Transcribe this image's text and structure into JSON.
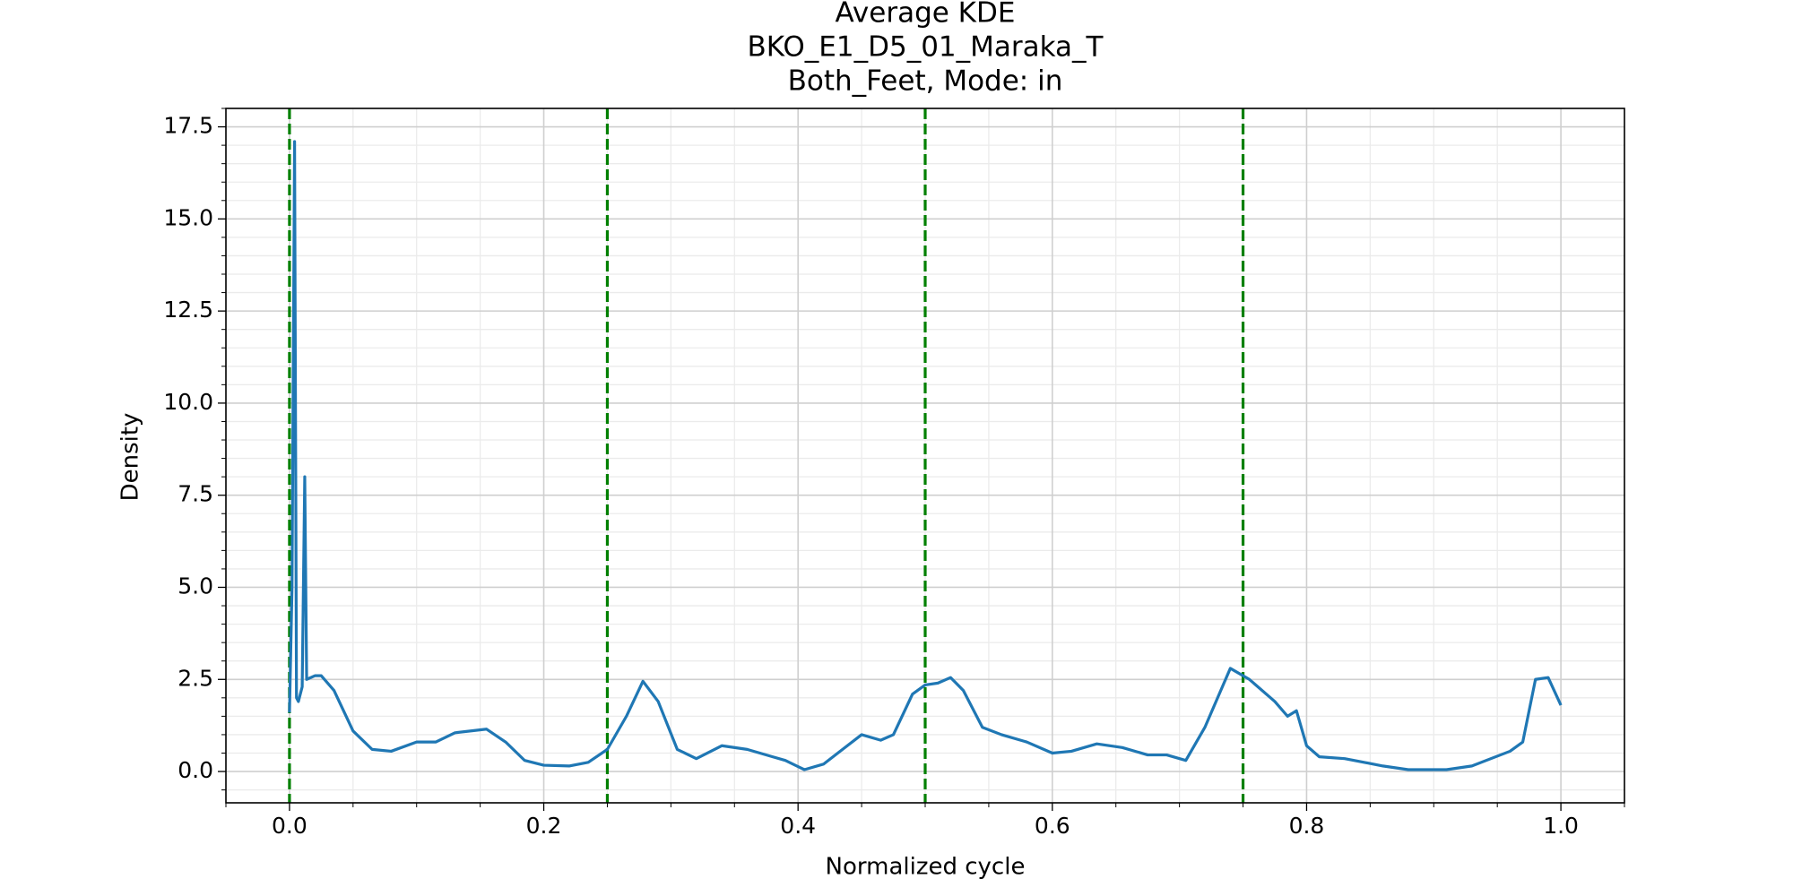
{
  "chart_data": {
    "type": "line",
    "title": [
      "Average KDE",
      "BKO_E1_D5_01_Maraka_T",
      "Both_Feet, Mode: in"
    ],
    "xlabel": "Normalized cycle",
    "ylabel": "Density",
    "xlim": [
      -0.05,
      1.05
    ],
    "ylim": [
      -0.85,
      18.0
    ],
    "xticks": [
      {
        "value": 0,
        "label": "0.0"
      },
      0.2,
      0.4,
      0.6,
      0.8,
      {
        "value": 1,
        "label": "1.0"
      }
    ],
    "yticks": [
      {
        "value": 0,
        "label": "0.0"
      },
      2.5,
      {
        "value": 5,
        "label": "5.0"
      },
      7.5,
      {
        "value": 10,
        "label": "10.0"
      },
      12.5,
      {
        "value": 15,
        "label": "15.0"
      },
      17.5
    ],
    "x_minor_step": 0.05,
    "y_minor_step": 0.5,
    "grid": true,
    "vlines": [
      0,
      0.25,
      0.5,
      0.75
    ],
    "vline_color": "#008000",
    "series": [
      {
        "color": "#1f77b4",
        "x": [
          0.0,
          0.002,
          0.004,
          0.0055,
          0.007,
          0.01,
          0.012,
          0.0135,
          0.02,
          0.025,
          0.035,
          0.05,
          0.065,
          0.08,
          0.1,
          0.115,
          0.13,
          0.155,
          0.17,
          0.185,
          0.2,
          0.22,
          0.235,
          0.25,
          0.265,
          0.278,
          0.29,
          0.305,
          0.32,
          0.34,
          0.36,
          0.38,
          0.39,
          0.405,
          0.42,
          0.435,
          0.45,
          0.465,
          0.475,
          0.49,
          0.5,
          0.51,
          0.52,
          0.53,
          0.545,
          0.56,
          0.58,
          0.6,
          0.615,
          0.635,
          0.655,
          0.675,
          0.69,
          0.705,
          0.72,
          0.74,
          0.755,
          0.775,
          0.785,
          0.792,
          0.8,
          0.81,
          0.83,
          0.86,
          0.88,
          0.91,
          0.93,
          0.96,
          0.97,
          0.98,
          0.99,
          1.0
        ],
        "values": [
          1.6,
          5,
          17.1,
          2.0,
          1.9,
          2.3,
          8.0,
          2.5,
          2.6,
          2.6,
          2.2,
          1.1,
          0.6,
          0.55,
          0.8,
          0.8,
          1.05,
          1.15,
          0.8,
          0.3,
          0.17,
          0.15,
          0.25,
          0.6,
          1.5,
          2.45,
          1.9,
          0.6,
          0.35,
          0.7,
          0.6,
          0.4,
          0.3,
          0.05,
          0.2,
          0.6,
          1.0,
          0.85,
          1.0,
          2.1,
          2.35,
          2.4,
          2.55,
          2.2,
          1.2,
          1.0,
          0.8,
          0.5,
          0.55,
          0.75,
          0.65,
          0.45,
          0.45,
          0.3,
          1.2,
          2.8,
          2.5,
          1.9,
          1.5,
          1.65,
          0.7,
          0.4,
          0.35,
          0.15,
          0.05,
          0.05,
          0.15,
          0.55,
          0.8,
          2.5,
          2.55,
          1.8
        ]
      }
    ]
  }
}
